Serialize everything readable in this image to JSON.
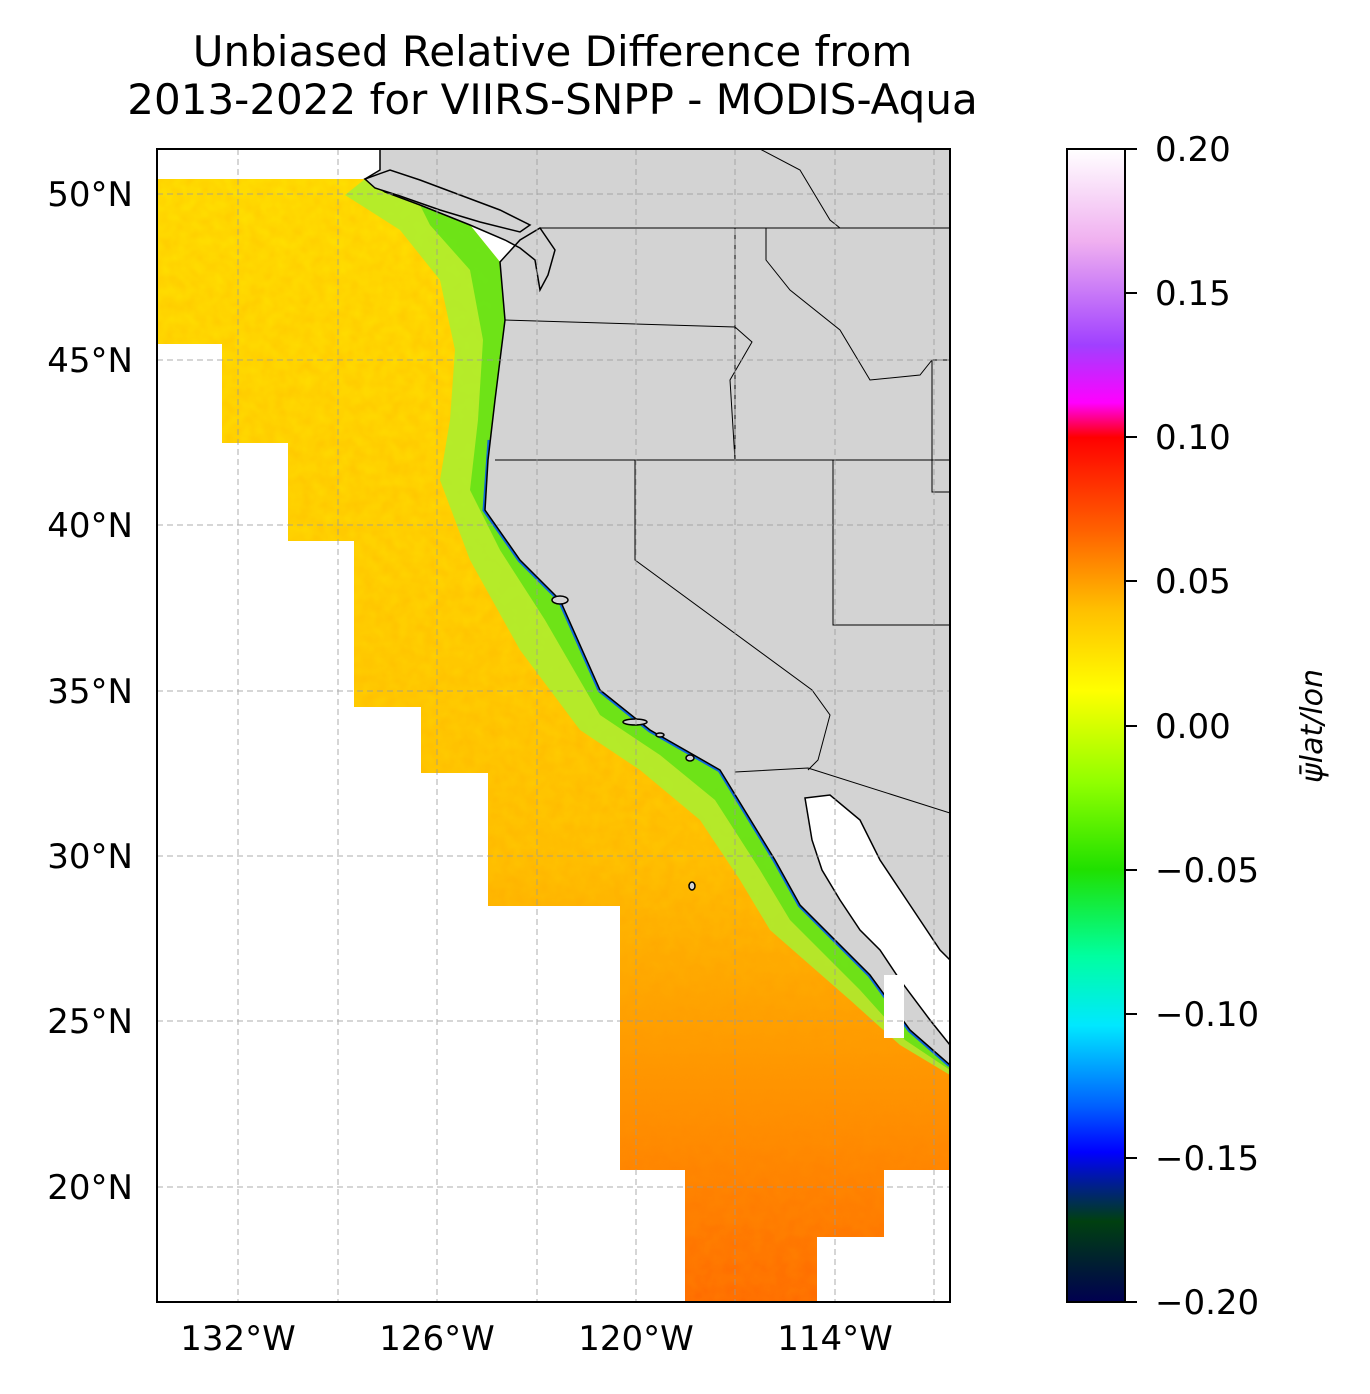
{
  "title_lines": [
    "Unbiased Relative Difference from",
    "2013-2022 for VIIRS-SNPP - MODIS-Aqua"
  ],
  "map": {
    "lon_ticks": [
      "132°W",
      "126°W",
      "120°W",
      "114°W"
    ],
    "lat_ticks": [
      "50°N",
      "45°N",
      "40°N",
      "35°N",
      "30°N",
      "25°N",
      "20°N"
    ],
    "land_color": "#d3d3d3",
    "ocean_no_data_color": "#ffffff",
    "gridlines": "dashed"
  },
  "colorbar": {
    "label": "ψ̄lat/lon",
    "ticks": [
      "0.20",
      "0.15",
      "0.10",
      "0.05",
      "0.00",
      "−0.05",
      "−0.10",
      "−0.15",
      "−0.20"
    ],
    "range": [
      -0.2,
      0.2
    ],
    "colormap": [
      "#ffffff",
      "#f0b0f0",
      "#a040ff",
      "#ff00ff",
      "#ff0000",
      "#ff8000",
      "#ffd000",
      "#ffff00",
      "#80ff00",
      "#20e000",
      "#00ffa0",
      "#00e0ff",
      "#0000ff",
      "#004000",
      "#000050"
    ]
  }
}
